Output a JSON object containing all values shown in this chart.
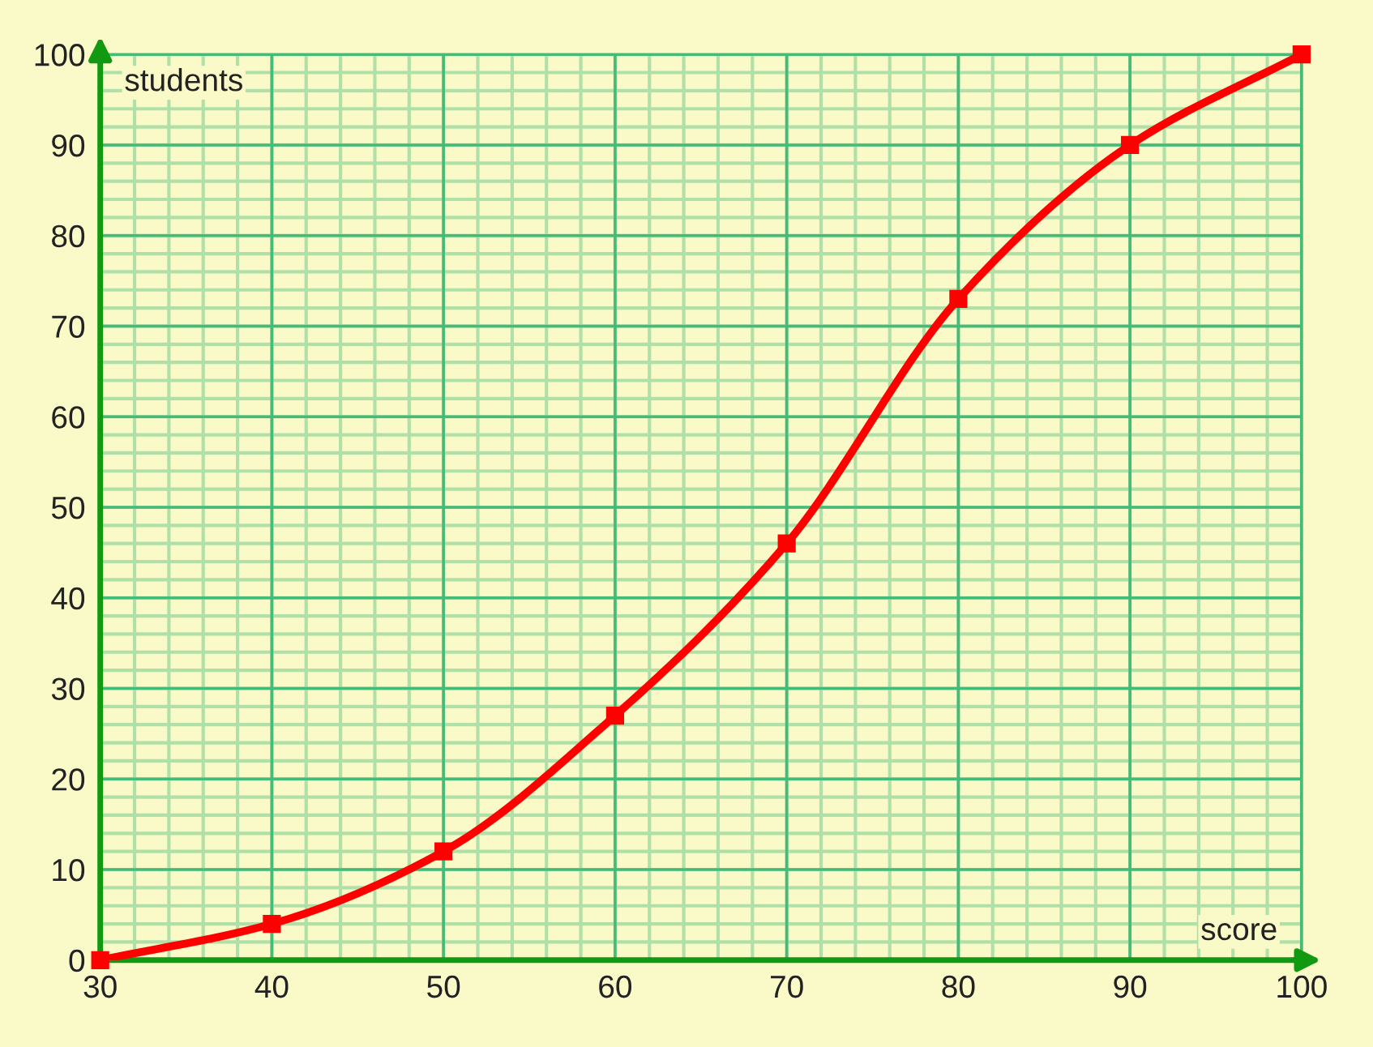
{
  "chart_data": {
    "type": "line",
    "xlabel": "score",
    "ylabel": "students",
    "x": [
      30,
      40,
      50,
      60,
      70,
      80,
      90,
      100
    ],
    "series": [
      {
        "color": "#ff0000",
        "values": [
          0,
          4,
          12,
          27,
          46,
          73,
          90,
          100
        ]
      }
    ],
    "xlim": [
      30,
      100
    ],
    "xticks": [
      30,
      40,
      50,
      60,
      70,
      80,
      90,
      100
    ],
    "ylim": [
      0,
      100
    ],
    "yticks": [
      0,
      10,
      20,
      30,
      40,
      50,
      60,
      70,
      80,
      90,
      100
    ],
    "grid": true,
    "marker": "square",
    "line_style": "solid"
  }
}
